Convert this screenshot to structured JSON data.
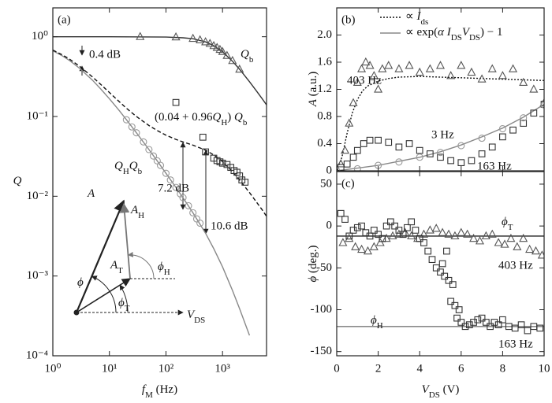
{
  "chart_data": [
    {
      "type": "line",
      "title": "(a)",
      "xscale": "log",
      "yscale": "log",
      "xlim": [
        1,
        6000
      ],
      "ylim": [
        0.0001,
        2.3
      ],
      "xticks": [
        {
          "value": 1,
          "label": "10⁰"
        },
        {
          "value": 10,
          "label": "10¹"
        },
        {
          "value": 100,
          "label": "10²"
        },
        {
          "value": 1000,
          "label": "10³"
        }
      ],
      "yticks": [
        {
          "value": 1,
          "label": "10⁰"
        },
        {
          "value": 0.1,
          "label": "10⁻¹"
        },
        {
          "value": 0.01,
          "label": "10⁻²"
        },
        {
          "value": 0.001,
          "label": "10⁻³"
        },
        {
          "value": 0.0001,
          "label": "10⁻⁴"
        }
      ],
      "xlabel": [
        {
          "text": "f",
          "italic": true
        },
        {
          "text": "M",
          "sub": true
        },
        {
          "text": " (Hz)"
        }
      ],
      "ylabel": [
        {
          "text": "Q",
          "italic": true
        }
      ],
      "series": [
        {
          "line": "solid",
          "color": "#333333",
          "x": [
            1,
            10,
            100,
            200,
            300,
            500,
            700,
            1000,
            1500,
            2000,
            3000,
            4000,
            5000,
            6000
          ],
          "values": [
            1,
            1,
            0.99,
            0.97,
            0.943,
            0.862,
            0.772,
            0.648,
            0.493,
            0.391,
            0.273,
            0.208,
            0.168,
            0.14
          ]
        },
        {
          "line": "solid",
          "color": "#888888",
          "x": [
            1,
            1.5,
            2,
            3,
            5,
            7,
            10,
            15,
            20,
            30,
            50,
            70,
            100,
            150,
            200,
            300,
            500,
            700,
            1000,
            1500,
            2000,
            3000
          ],
          "values": [
            0.667,
            0.571,
            0.5,
            0.4,
            0.286,
            0.222,
            0.167,
            0.118,
            0.091,
            0.0625,
            0.0385,
            0.0278,
            0.0194,
            0.0129,
            0.0096,
            0.0062,
            0.00345,
            0.0022,
            0.0013,
            0.00066,
            0.00039,
            0.00018
          ]
        },
        {
          "line": "dashed",
          "color": "#111111",
          "x": [
            1,
            1.5,
            2,
            3,
            5,
            7,
            10,
            15,
            20,
            30,
            50,
            70,
            100,
            150,
            200,
            300,
            500,
            700,
            1000,
            1500,
            2000,
            3000,
            4000,
            5000,
            6000
          ],
          "values": [
            0.68,
            0.588,
            0.52,
            0.424,
            0.314,
            0.253,
            0.2,
            0.153,
            0.127,
            0.1,
            0.077,
            0.0667,
            0.0582,
            0.0516,
            0.048,
            0.0437,
            0.0378,
            0.033,
            0.0272,
            0.0204,
            0.016,
            0.0111,
            0.0084,
            0.0068,
            0.0056
          ]
        },
        {
          "marker": "triangle",
          "color": "#555555",
          "x": [
            35,
            150,
            300,
            400,
            500,
            600,
            700,
            800,
            900,
            1000,
            1200,
            1500,
            2000
          ],
          "values": [
            1,
            0.99,
            0.95,
            0.91,
            0.86,
            0.82,
            0.77,
            0.73,
            0.69,
            0.65,
            0.58,
            0.5,
            0.39
          ]
        },
        {
          "marker": "circle",
          "color": "#999999",
          "x": [
            20,
            25,
            30,
            40,
            50,
            60,
            70,
            80,
            100,
            120,
            150,
            180,
            200,
            250,
            300,
            350,
            400
          ],
          "values": [
            0.091,
            0.074,
            0.0625,
            0.048,
            0.0385,
            0.032,
            0.0278,
            0.0244,
            0.0194,
            0.016,
            0.0129,
            0.0107,
            0.0096,
            0.0076,
            0.0062,
            0.0052,
            0.0046
          ]
        },
        {
          "marker": "square",
          "color": "#333333",
          "x": [
            150,
            450,
            500,
            700,
            800,
            900,
            1000,
            1200,
            1400,
            1600,
            1800,
            2000,
            2200,
            2500
          ],
          "values": [
            0.15,
            0.055,
            0.036,
            0.03,
            0.028,
            0.027,
            0.026,
            0.025,
            0.023,
            0.021,
            0.02,
            0.018,
            0.016,
            0.015
          ]
        }
      ],
      "annotations": [
        [
          {
            "text": "Q",
            "italic": true
          },
          {
            "text": "b",
            "sub": true
          }
        ],
        [
          {
            "text": "(0.04 + 0.96"
          },
          {
            "text": "Q",
            "italic": true
          },
          {
            "text": "H",
            "sub": true
          },
          {
            "text": ") "
          },
          {
            "text": "Q",
            "italic": true
          },
          {
            "text": "b",
            "sub": true
          }
        ],
        [
          {
            "text": "Q",
            "italic": true
          },
          {
            "text": "H",
            "sub": true
          },
          {
            "text": "Q",
            "italic": true
          },
          {
            "text": "b",
            "sub": true
          }
        ],
        "0.4 dB",
        "7.2 dB",
        "10.6 dB",
        [
          {
            "text": "A",
            "italic": true
          }
        ],
        [
          {
            "text": "A",
            "italic": true
          },
          {
            "text": "H",
            "sub": true
          }
        ],
        [
          {
            "text": "A",
            "italic": true
          },
          {
            "text": "T",
            "sub": true
          }
        ],
        [
          {
            "text": "ϕ",
            "italic": true
          }
        ],
        [
          {
            "text": "ϕ",
            "italic": true
          },
          {
            "text": "H",
            "sub": true
          }
        ],
        [
          {
            "text": "ϕ",
            "italic": true
          },
          {
            "text": "T",
            "sub": true
          }
        ],
        [
          {
            "text": "V",
            "italic": true
          },
          {
            "text": "DS",
            "sub": true
          }
        ]
      ]
    },
    {
      "type": "line",
      "title": "(b)",
      "xlim": [
        0,
        10
      ],
      "ylim": [
        0,
        2.4
      ],
      "xtick_labels": false,
      "xticks": [
        0,
        2,
        4,
        6,
        8,
        10
      ],
      "yticks": [
        0,
        0.4,
        0.8,
        1.2,
        1.6,
        {
          "value": 2,
          "label": "2.0"
        }
      ],
      "ylabel": [
        {
          "text": "A",
          "italic": true
        },
        {
          "text": " (a.u.)"
        }
      ],
      "legend": "upper right",
      "series": [
        {
          "name": [
            {
              "text": "∝ "
            },
            {
              "text": "I",
              "italic": true
            },
            {
              "text": "ds",
              "sub": true
            }
          ],
          "line": "dotted",
          "color": "#111111",
          "x": [
            0,
            0.25,
            0.5,
            0.75,
            1,
            1.25,
            1.5,
            2,
            2.5,
            3,
            4,
            5,
            6,
            7,
            8,
            9,
            10
          ],
          "values": [
            0,
            0.2,
            0.55,
            0.85,
            1.05,
            1.18,
            1.25,
            1.32,
            1.36,
            1.38,
            1.39,
            1.38,
            1.37,
            1.36,
            1.35,
            1.34,
            1.33
          ]
        },
        {
          "name": [
            {
              "text": "∝ exp("
            },
            {
              "text": "α I",
              "italic": true
            },
            {
              "text": "DS",
              "sub": true
            },
            {
              "text": "V",
              "italic": true
            },
            {
              "text": "DS",
              "sub": true
            },
            {
              "text": ") − 1"
            }
          ],
          "line": "solid",
          "color": "#888888",
          "x": [
            0,
            1,
            2,
            3,
            4,
            5,
            6,
            7,
            8,
            9,
            10
          ],
          "values": [
            0,
            0.04,
            0.08,
            0.14,
            0.2,
            0.28,
            0.38,
            0.5,
            0.63,
            0.79,
            0.98
          ]
        },
        {
          "marker": "triangle",
          "color": "#555555",
          "x": [
            0.2,
            0.4,
            0.6,
            0.8,
            1.0,
            1.2,
            1.4,
            1.6,
            1.8,
            2.0,
            2.2,
            2.5,
            3,
            3.5,
            4,
            4.5,
            5,
            5.5,
            6,
            6.5,
            7,
            7.5,
            8,
            8.5,
            9,
            9.5,
            10
          ],
          "values": [
            0.1,
            0.3,
            0.7,
            1.0,
            1.3,
            1.5,
            1.6,
            1.55,
            1.4,
            1.2,
            1.5,
            1.55,
            1.5,
            1.55,
            1.45,
            1.5,
            1.55,
            1.4,
            1.55,
            1.45,
            1.35,
            1.5,
            1.4,
            1.5,
            1.3,
            1.2,
            1.0
          ]
        },
        {
          "marker": "square",
          "color": "#333333",
          "x": [
            0.2,
            0.5,
            0.8,
            1.0,
            1.3,
            1.6,
            2,
            2.5,
            3,
            3.5,
            4,
            4.5,
            5,
            5.5,
            6,
            6.5,
            7,
            7.5,
            8,
            8.5,
            9,
            9.5,
            10
          ],
          "values": [
            0.05,
            0.1,
            0.2,
            0.3,
            0.4,
            0.45,
            0.45,
            0.42,
            0.35,
            0.4,
            0.3,
            0.25,
            0.2,
            0.15,
            0.12,
            0.15,
            0.25,
            0.35,
            0.5,
            0.6,
            0.7,
            0.85,
            0.98
          ]
        },
        {
          "marker": "circle",
          "color": "#999999",
          "x": [
            0,
            1,
            2,
            3,
            4,
            5,
            6,
            7,
            8,
            9,
            10
          ],
          "values": [
            0,
            0.03,
            0.08,
            0.13,
            0.2,
            0.27,
            0.37,
            0.48,
            0.62,
            0.78,
            0.97
          ]
        }
      ],
      "annotations": [
        "403 Hz",
        "3 Hz",
        "163 Hz"
      ]
    },
    {
      "type": "line",
      "title": "(c)",
      "xlim": [
        0,
        10
      ],
      "ylim": [
        -155,
        65
      ],
      "xticks": [
        0,
        2,
        4,
        6,
        8,
        10
      ],
      "yticks": [
        -150,
        -100,
        -50,
        0,
        50
      ],
      "xlabel": [
        {
          "text": "V",
          "italic": true
        },
        {
          "text": "DS",
          "sub": true
        },
        {
          "text": " (V)"
        }
      ],
      "ylabel": [
        {
          "text": "ϕ",
          "italic": true
        },
        {
          "text": " (deg.)"
        }
      ],
      "series": [
        {
          "line": "solid",
          "color": "#222222",
          "x": [
            0,
            10
          ],
          "values": [
            -12,
            -12
          ]
        },
        {
          "line": "solid",
          "color": "#777777",
          "x": [
            0,
            10
          ],
          "values": [
            -120,
            -120
          ]
        },
        {
          "marker": "triangle",
          "color": "#555555",
          "x": [
            0.3,
            0.6,
            0.9,
            1.2,
            1.5,
            1.8,
            2.1,
            2.4,
            2.7,
            3.0,
            3.3,
            3.6,
            3.9,
            4.2,
            4.5,
            4.8,
            5.1,
            5.4,
            5.7,
            6.0,
            6.3,
            6.6,
            6.9,
            7.2,
            7.5,
            7.8,
            8.1,
            8.4,
            8.7,
            9.0,
            9.3,
            9.6,
            9.9
          ],
          "values": [
            -20,
            -15,
            -25,
            -28,
            -30,
            -25,
            -20,
            -15,
            -12,
            -10,
            -8,
            -12,
            -15,
            -10,
            -5,
            -3,
            -8,
            -10,
            -12,
            -8,
            -10,
            -15,
            -18,
            -12,
            -10,
            -20,
            -22,
            -15,
            -25,
            -15,
            -28,
            -30,
            -35
          ]
        },
        {
          "marker": "square",
          "color": "#333333",
          "x": [
            0.2,
            0.4,
            0.6,
            0.8,
            1,
            1.2,
            1.4,
            1.6,
            1.8,
            2,
            2.2,
            2.4,
            2.6,
            2.8,
            3,
            3.2,
            3.4,
            3.6,
            3.8,
            4,
            4.2,
            4.4,
            4.6,
            4.8,
            5,
            5.1,
            5.2,
            5.3,
            5.4,
            5.5,
            5.6,
            5.7,
            5.8,
            5.9,
            6,
            6.2,
            6.4,
            6.6,
            6.8,
            7,
            7.2,
            7.4,
            7.6,
            7.8,
            8,
            8.3,
            8.6,
            8.9,
            9.2,
            9.5,
            9.8
          ],
          "values": [
            15,
            8,
            -12,
            -5,
            -2,
            0,
            -8,
            -12,
            -5,
            -10,
            -15,
            0,
            5,
            0,
            -5,
            -10,
            -2,
            5,
            -5,
            -15,
            -20,
            -30,
            -40,
            -50,
            -55,
            -45,
            -60,
            -30,
            -65,
            -90,
            -70,
            -95,
            -110,
            -100,
            -115,
            -120,
            -118,
            -115,
            -112,
            -110,
            -115,
            -120,
            -115,
            -118,
            -112,
            -120,
            -122,
            -118,
            -125,
            -120,
            -122
          ]
        }
      ],
      "annotations": [
        [
          {
            "text": "ϕ",
            "italic": true
          },
          {
            "text": "T",
            "sub": true
          }
        ],
        "403 Hz",
        [
          {
            "text": "ϕ",
            "italic": true
          },
          {
            "text": "H",
            "sub": true
          }
        ],
        "163 Hz"
      ]
    }
  ]
}
